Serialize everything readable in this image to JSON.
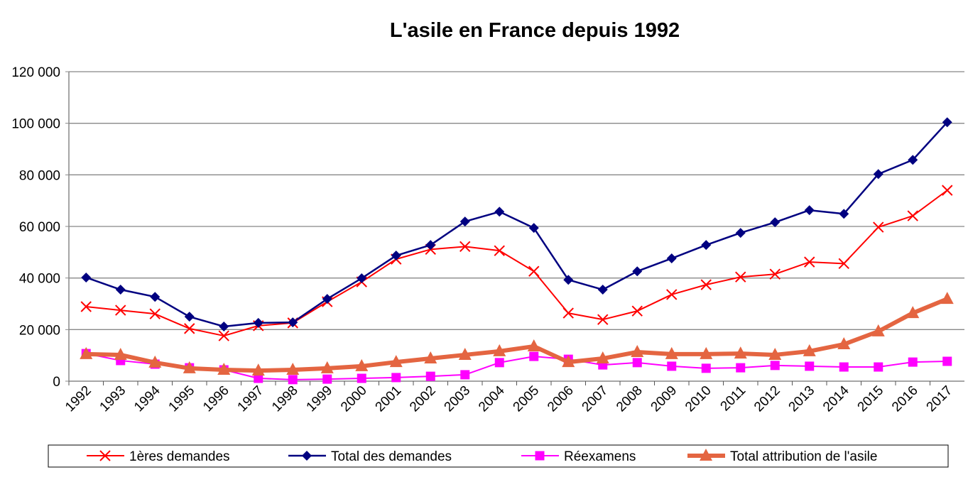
{
  "chart_data": {
    "type": "line",
    "title": "L'asile en France depuis 1992",
    "xlabel": "",
    "ylabel": "",
    "ylim": [
      0,
      120000
    ],
    "yticks": [
      0,
      20000,
      40000,
      60000,
      80000,
      100000,
      120000
    ],
    "ytick_labels": [
      "0",
      "20 000",
      "40 000",
      "60 000",
      "80 000",
      "100 000",
      "120 000"
    ],
    "grid": true,
    "legend": "bottom",
    "categories": [
      "1992",
      "1993",
      "1994",
      "1995",
      "1996",
      "1997",
      "1998",
      "1999",
      "2000",
      "2001",
      "2002",
      "2003",
      "2004",
      "2005",
      "2006",
      "2007",
      "2008",
      "2009",
      "2010",
      "2011",
      "2012",
      "2013",
      "2014",
      "2015",
      "2016",
      "2017"
    ],
    "series": [
      {
        "name": "1ères demandes",
        "color": "#ff0000",
        "marker": "x",
        "values": [
          28900,
          27500,
          26100,
          20400,
          17600,
          21500,
          22600,
          30800,
          38500,
          47300,
          51100,
          52200,
          50600,
          42600,
          26400,
          23900,
          27200,
          33600,
          37400,
          40400,
          41500,
          46200,
          45600,
          59700,
          64100,
          74000
        ]
      },
      {
        "name": "Total des demandes",
        "color": "#000080",
        "marker": "diamond",
        "values": [
          40200,
          35500,
          32700,
          25000,
          21200,
          22600,
          22800,
          31900,
          39900,
          48700,
          52800,
          61900,
          65700,
          59400,
          39300,
          35500,
          42600,
          47600,
          52800,
          57500,
          61600,
          66300,
          64900,
          80300,
          85800,
          100400
        ]
      },
      {
        "name": "Réexamens",
        "color": "#ff00ff",
        "marker": "square",
        "values": [
          10700,
          8000,
          6600,
          5200,
          4400,
          1100,
          600,
          800,
          1100,
          1400,
          1900,
          2500,
          7200,
          9600,
          8500,
          6300,
          7200,
          5800,
          5000,
          5200,
          6100,
          5800,
          5500,
          5500,
          7400,
          7700
        ]
      },
      {
        "name": "Total attribution de l'asile",
        "color": "#e46541",
        "marker": "triangle",
        "values": [
          10500,
          10200,
          7200,
          5000,
          4400,
          4100,
          4400,
          5000,
          5800,
          7400,
          8800,
          10200,
          11600,
          13500,
          7400,
          8800,
          11300,
          10500,
          10500,
          10700,
          10200,
          11600,
          14300,
          19300,
          26400,
          31900
        ]
      }
    ]
  }
}
